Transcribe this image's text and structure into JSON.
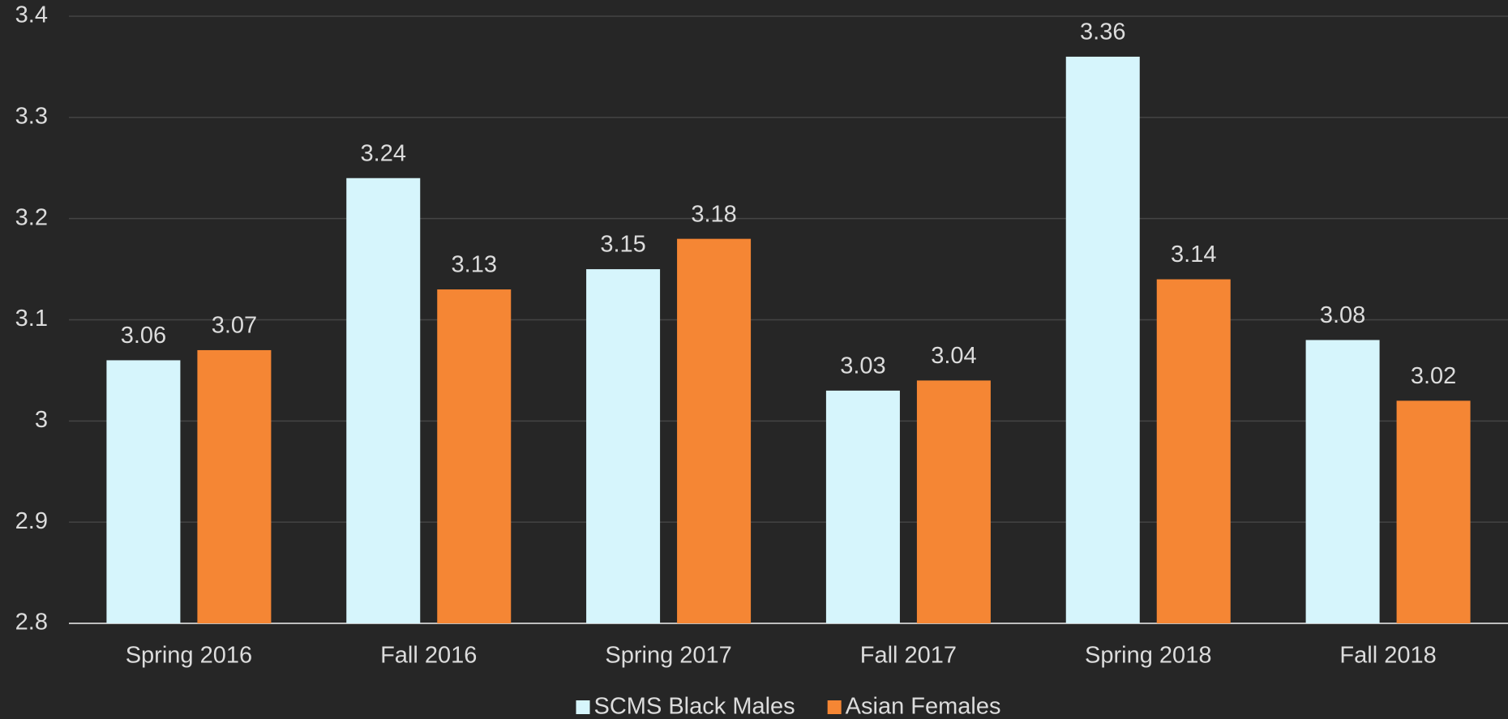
{
  "chart_data": {
    "type": "bar",
    "categories": [
      "Spring 2016",
      "Fall 2016",
      "Spring 2017",
      "Fall 2017",
      "Spring 2018",
      "Fall 2018"
    ],
    "series": [
      {
        "name": "SCMS Black Males",
        "color": "#d6f5fc",
        "values": [
          3.06,
          3.24,
          3.15,
          3.03,
          3.36,
          3.08
        ]
      },
      {
        "name": "Asian Females",
        "color": "#f58634",
        "values": [
          3.07,
          3.13,
          3.18,
          3.04,
          3.14,
          3.02
        ]
      }
    ],
    "ylim": [
      2.8,
      3.4
    ],
    "yticks": [
      2.8,
      2.9,
      3,
      3.1,
      3.2,
      3.3,
      3.4
    ],
    "grid": true,
    "legend": "bottom"
  }
}
